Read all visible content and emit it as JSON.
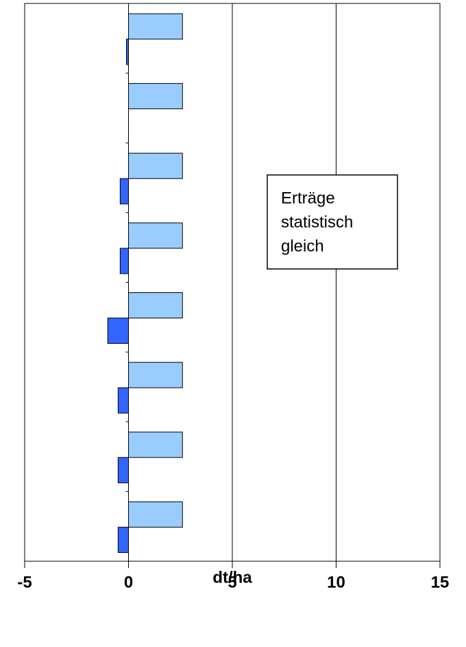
{
  "chart_data": {
    "type": "hbar",
    "categories": [
      null,
      null,
      null,
      null,
      null,
      null,
      null,
      null
    ],
    "series": [
      {
        "color": "#99ccff",
        "values": [
          2.6,
          2.6,
          2.6,
          2.6,
          2.6,
          2.6,
          2.6,
          2.6
        ]
      },
      {
        "color": "#3366ff",
        "values": [
          -0.1,
          0,
          -0.4,
          -0.4,
          -1.0,
          -0.5,
          -0.5,
          -0.5
        ]
      }
    ],
    "xlim": [
      -5,
      15
    ],
    "xticks": [
      -5,
      0,
      5,
      10,
      15
    ],
    "grid": true,
    "xlabel": "dt/ha",
    "annotation": [
      "Erträge",
      "statistisch",
      "gleich"
    ]
  }
}
